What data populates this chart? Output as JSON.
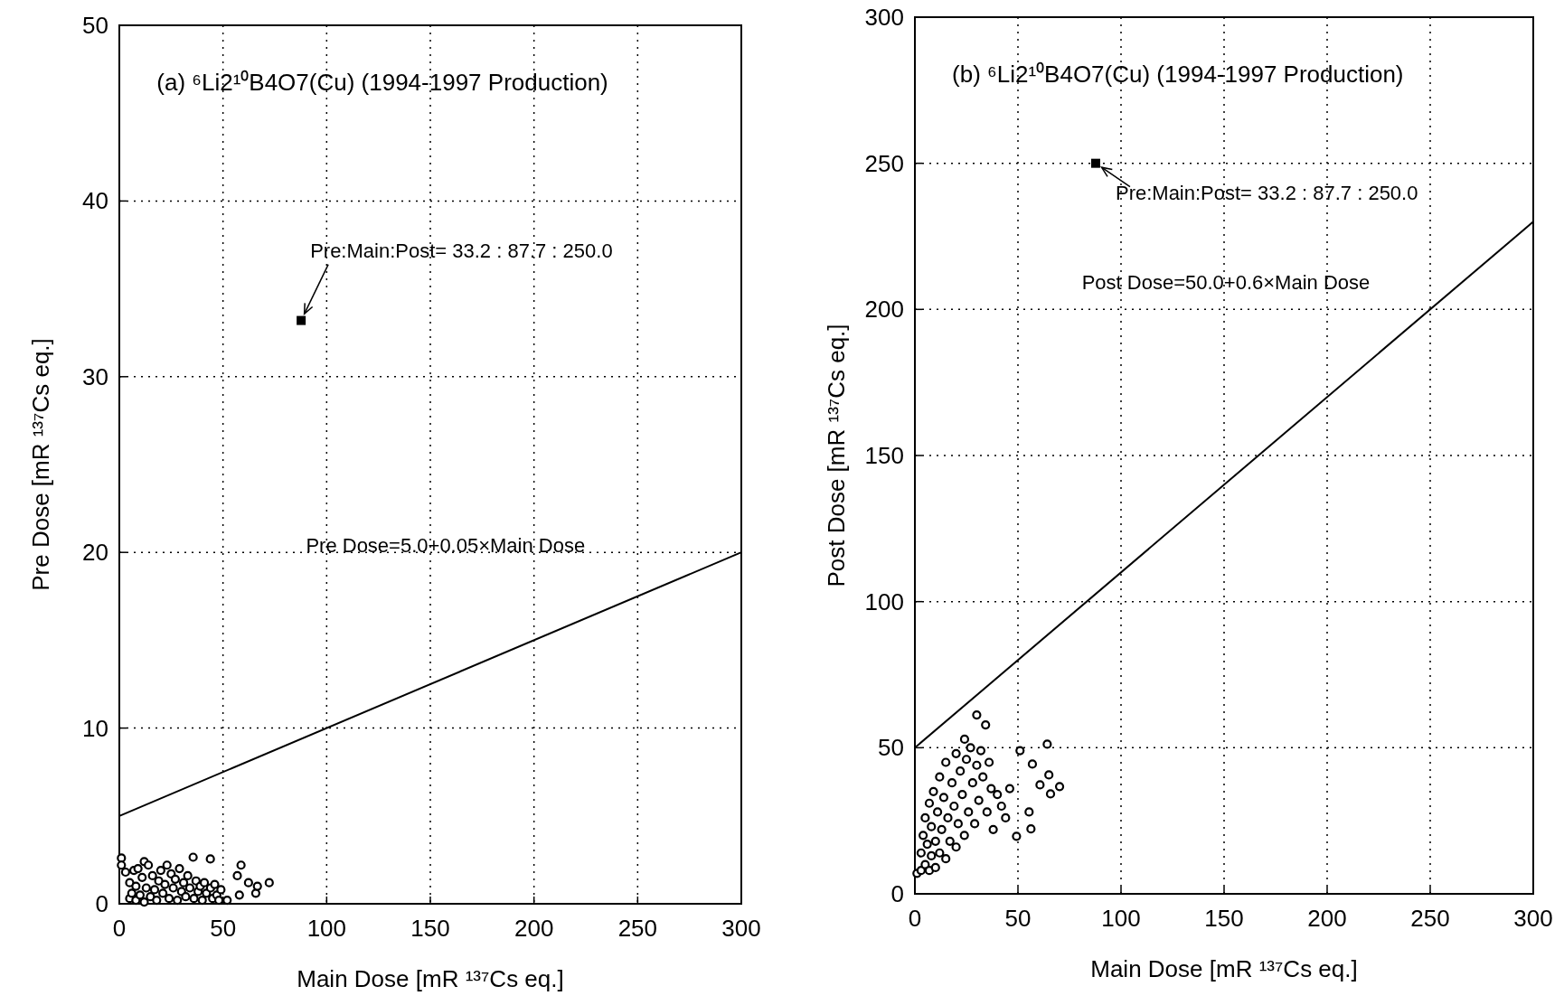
{
  "chart_data": [
    {
      "type": "scatter",
      "title": "(a) ⁶Li2¹⁰B4O7(Cu) (1994-1997 Production)",
      "xlabel": "Main Dose [mR ¹³⁷Cs eq.]",
      "ylabel": "Pre Dose [mR ¹³⁷Cs eq.]",
      "xlim": [
        0,
        300
      ],
      "ylim": [
        0,
        50
      ],
      "xticks": [
        0,
        50,
        100,
        150,
        200,
        250,
        300
      ],
      "yticks": [
        0,
        10,
        20,
        30,
        40,
        50
      ],
      "grid": true,
      "annotations": [
        {
          "text": "Pre:Main:Post= 33.2 : 87.7 : 250.0",
          "x": 87.7,
          "y": 33.2
        },
        "Pre Dose=5.0+0.05×Main Dose"
      ],
      "series": [
        {
          "marker": "circle",
          "color": "#000000",
          "x": [
            1,
            1,
            3,
            5,
            5,
            6,
            7,
            8,
            8,
            9,
            10,
            11,
            12,
            12,
            13,
            14,
            15,
            16,
            17,
            18,
            19,
            20,
            21,
            22,
            23,
            24,
            25,
            26,
            27,
            28,
            29,
            30,
            31,
            32,
            33,
            34,
            35.6,
            36,
            37,
            38,
            39,
            40,
            41,
            42,
            43.9,
            44,
            45,
            46,
            47,
            48,
            49,
            52,
            56.9,
            57.9,
            58.7,
            62.3,
            65.8,
            66.6,
            72.3
          ],
          "values": [
            2.6,
            2.2,
            1.8,
            0.3,
            1.2,
            0.6,
            1.9,
            0.2,
            1.0,
            2.0,
            0.5,
            1.5,
            0.1,
            2.4,
            0.9,
            2.2,
            0.4,
            1.6,
            0.8,
            0.2,
            1.3,
            1.9,
            0.6,
            1.1,
            2.2,
            0.3,
            1.7,
            0.9,
            1.4,
            0.2,
            2.0,
            0.7,
            1.2,
            0.4,
            1.6,
            0.9,
            2.65,
            0.3,
            1.3,
            0.7,
            1.0,
            0.2,
            1.2,
            0.6,
            2.55,
            0.9,
            0.3,
            1.1,
            0.5,
            0.2,
            0.8,
            0.2,
            1.6,
            0.5,
            2.2,
            1.2,
            0.6,
            1.0,
            1.2
          ]
        },
        {
          "marker": "square",
          "color": "#000000",
          "x": [
            87.7
          ],
          "values": [
            33.2
          ]
        },
        {
          "type": "line",
          "marker": "none",
          "color": "#000000",
          "x": [
            0,
            300
          ],
          "values": [
            5,
            20
          ]
        }
      ]
    },
    {
      "type": "scatter",
      "title": "(b) ⁶Li2¹⁰B4O7(Cu) (1994-1997 Production)",
      "xlabel": "Main Dose [mR ¹³⁷Cs eq.]",
      "ylabel": "Post Dose [mR ¹³⁷Cs eq.]",
      "xlim": [
        0,
        300
      ],
      "ylim": [
        0,
        300
      ],
      "xticks": [
        0,
        50,
        100,
        150,
        200,
        250,
        300
      ],
      "yticks": [
        0,
        50,
        100,
        150,
        200,
        250,
        300
      ],
      "grid": true,
      "annotations": [
        {
          "text": "Pre:Main:Post= 33.2 : 87.7 : 250.0",
          "x": 87.7,
          "y": 250
        },
        "Post Dose=50.0+0.6×Main Dose"
      ],
      "series": [
        {
          "marker": "circle",
          "color": "#000000",
          "x": [
            1,
            3,
            3,
            4,
            5,
            5,
            6,
            7,
            7,
            8,
            8,
            9,
            10,
            10,
            11,
            12,
            12,
            13,
            14,
            15,
            15,
            16,
            17,
            18,
            19,
            20,
            20,
            21,
            22,
            23,
            24,
            24.1,
            25,
            26,
            27,
            28,
            29,
            30,
            30,
            31,
            32,
            33,
            34.3,
            35,
            36,
            37,
            38,
            40,
            42,
            44,
            46,
            49.3,
            51,
            55.4,
            56.3,
            57,
            60.7,
            64.2,
            65,
            65.8,
            70.2
          ],
          "values": [
            7,
            8,
            14,
            20,
            10,
            26,
            17,
            8,
            31,
            13,
            23,
            35,
            9,
            18,
            28,
            14,
            40,
            22,
            33,
            12,
            45,
            26,
            18,
            38,
            30,
            16,
            48,
            24,
            42,
            34,
            20,
            52.9,
            46,
            28,
            50,
            38,
            24,
            44,
            61.2,
            32,
            49,
            40,
            57.8,
            28,
            45,
            36,
            22,
            34,
            30,
            26,
            36,
            19.7,
            49,
            28,
            22.2,
            44.4,
            37.3,
            51.2,
            40.7,
            34.2,
            36.7
          ]
        },
        {
          "marker": "square",
          "color": "#000000",
          "x": [
            87.7
          ],
          "values": [
            250
          ]
        },
        {
          "type": "line",
          "marker": "none",
          "color": "#000000",
          "x": [
            0,
            300
          ],
          "values": [
            50,
            230
          ]
        }
      ]
    }
  ]
}
